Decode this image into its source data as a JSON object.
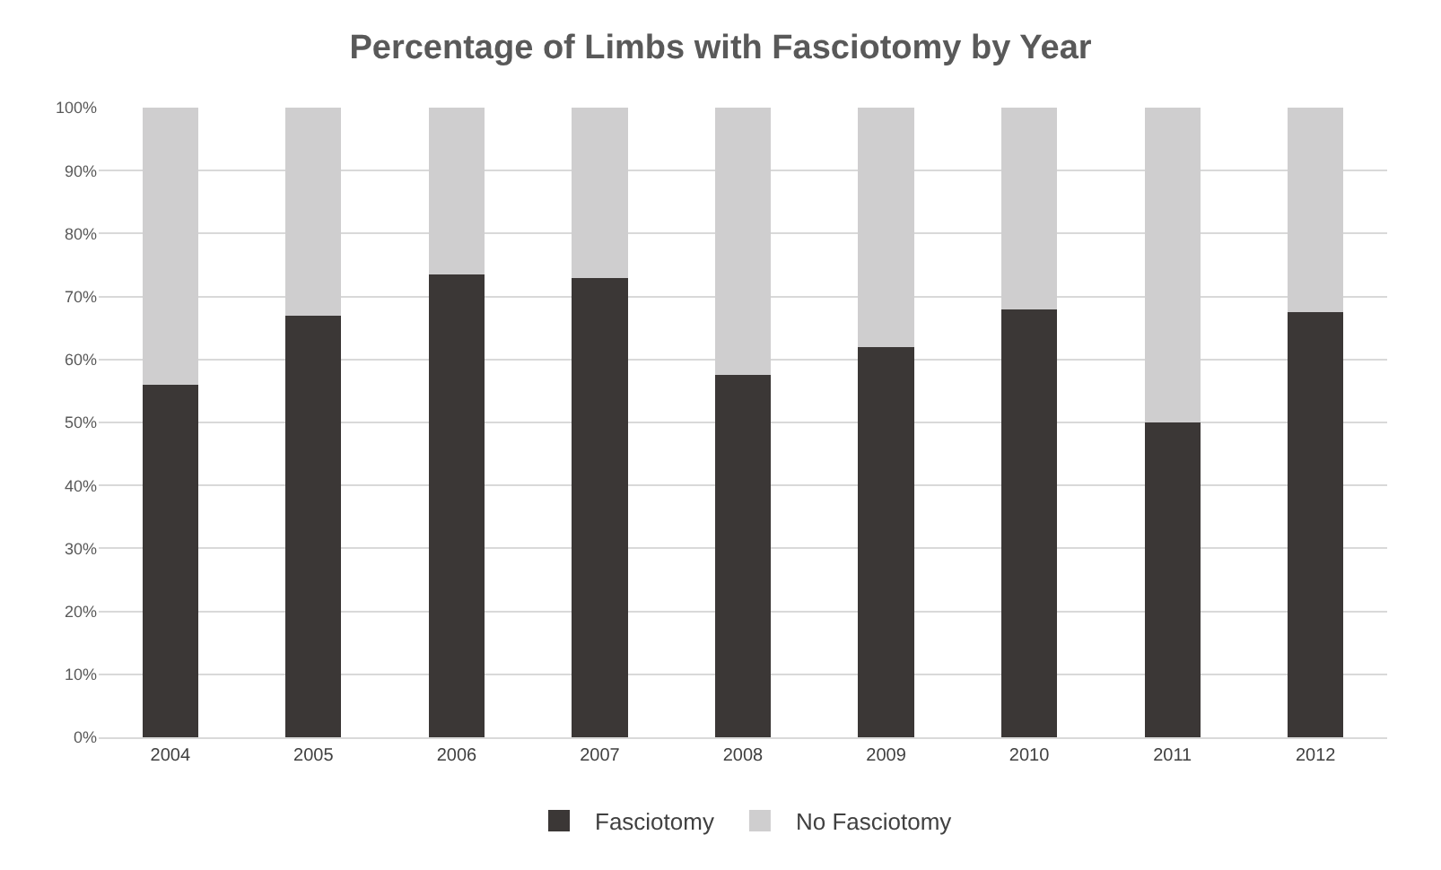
{
  "chart_data": {
    "type": "bar",
    "title": "Percentage of Limbs with Fasciotomy by Year",
    "categories": [
      "2004",
      "2005",
      "2006",
      "2007",
      "2008",
      "2009",
      "2010",
      "2011",
      "2012"
    ],
    "stacked": true,
    "series": [
      {
        "name": "Fasciotomy",
        "color": "#3b3736",
        "values": [
          56,
          67,
          73.5,
          73,
          57.5,
          62,
          68,
          50,
          67.5
        ]
      },
      {
        "name": "No Fasciotomy",
        "color": "#cfcecf",
        "values": [
          44,
          33,
          26.5,
          27,
          42.5,
          38,
          32,
          50,
          32.5
        ]
      }
    ],
    "ylim": [
      0,
      100
    ],
    "yticks": [
      {
        "value": 0,
        "label": "0%"
      },
      {
        "value": 10,
        "label": "10%"
      },
      {
        "value": 20,
        "label": "20%"
      },
      {
        "value": 30,
        "label": "30%"
      },
      {
        "value": 40,
        "label": "40%"
      },
      {
        "value": 50,
        "label": "50%"
      },
      {
        "value": 60,
        "label": "60%"
      },
      {
        "value": 70,
        "label": "70%"
      },
      {
        "value": 80,
        "label": "80%"
      },
      {
        "value": 90,
        "label": "90%"
      },
      {
        "value": 100,
        "label": "100%"
      }
    ],
    "grid": "y",
    "legend": "bottom"
  }
}
